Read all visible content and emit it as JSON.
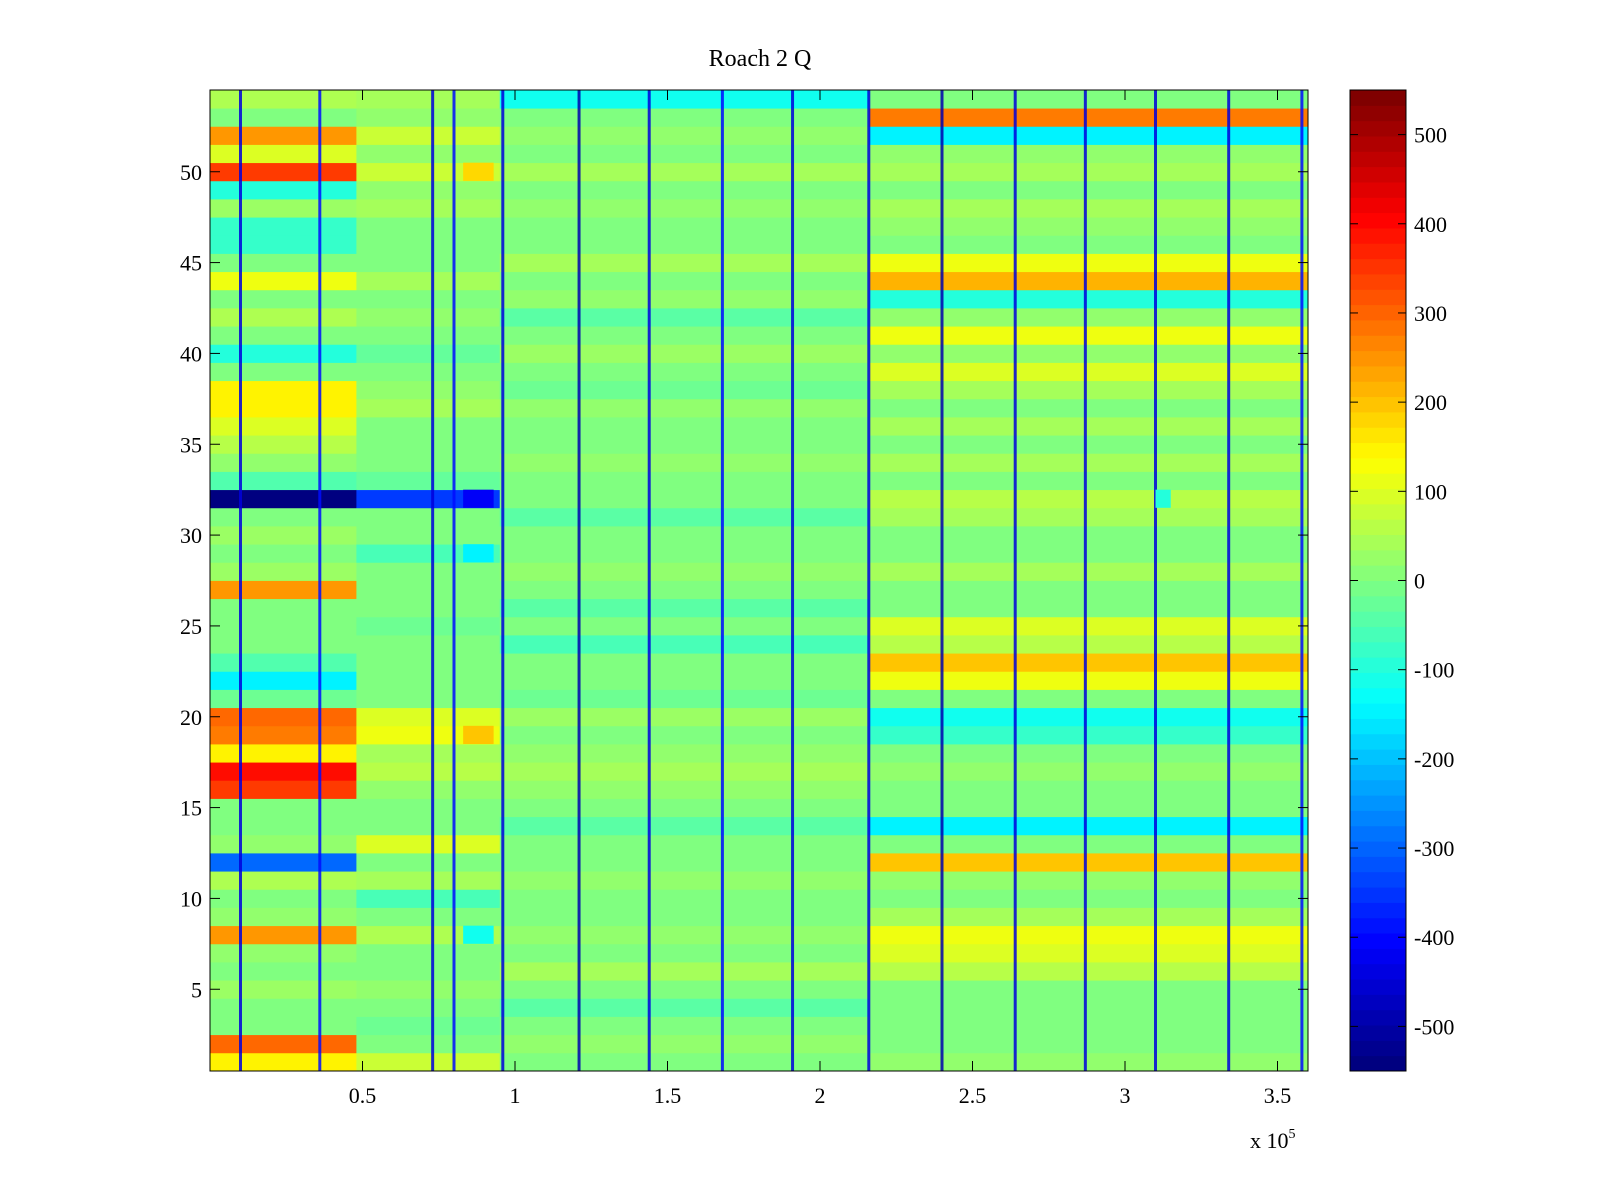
{
  "chart_data": {
    "type": "heatmap",
    "title": "Roach 2 Q",
    "xlabel": "",
    "ylabel": "",
    "xlim": [
      0,
      360000
    ],
    "ylim": [
      0.5,
      54.5
    ],
    "x_multiplier_label": "x 10",
    "x_multiplier_exponent": "5",
    "x_ticks": [
      0.5,
      1,
      1.5,
      2,
      2.5,
      3,
      3.5
    ],
    "x_tick_labels": [
      "0.5",
      "1",
      "1.5",
      "2",
      "2.5",
      "3",
      "3.5"
    ],
    "y_ticks": [
      5,
      10,
      15,
      20,
      25,
      30,
      35,
      40,
      45,
      50
    ],
    "y_tick_labels": [
      "5",
      "10",
      "15",
      "20",
      "25",
      "30",
      "35",
      "40",
      "45",
      "50"
    ],
    "rows": 54,
    "colormap": "jet",
    "clim": [
      -550,
      550
    ],
    "colorbar_ticks": [
      500,
      400,
      300,
      200,
      100,
      0,
      -100,
      -200,
      -300,
      -400,
      -500
    ],
    "colorbar_tick_labels": [
      "500",
      "400",
      "300",
      "200",
      "100",
      "0",
      "-100",
      "-200",
      "-300",
      "-400",
      "-500"
    ],
    "grid": false,
    "segments_x": [
      0,
      48000,
      95000,
      216000,
      360000
    ],
    "row_levels": {
      "segment_1": [
        150,
        300,
        0,
        0,
        30,
        0,
        20,
        250,
        20,
        0,
        50,
        -300,
        20,
        0,
        0,
        350,
        400,
        150,
        280,
        300,
        -20,
        -150,
        -50,
        0,
        0,
        0,
        250,
        30,
        0,
        30,
        0,
        -550,
        -50,
        20,
        60,
        100,
        150,
        150,
        0,
        -100,
        0,
        50,
        0,
        120,
        0,
        -80,
        -80,
        30,
        -100,
        350,
        100,
        250,
        0,
        50
      ],
      "segment_2": [
        80,
        0,
        -20,
        0,
        20,
        0,
        0,
        50,
        0,
        -60,
        40,
        0,
        100,
        0,
        0,
        20,
        60,
        40,
        120,
        100,
        0,
        0,
        0,
        0,
        -20,
        0,
        0,
        0,
        -60,
        0,
        0,
        -350,
        -30,
        0,
        0,
        0,
        40,
        20,
        0,
        -30,
        0,
        20,
        0,
        40,
        0,
        0,
        0,
        40,
        20,
        80,
        20,
        80,
        20,
        40
      ],
      "segment_3": [
        0,
        20,
        0,
        -40,
        0,
        40,
        0,
        20,
        0,
        0,
        20,
        0,
        0,
        -40,
        0,
        20,
        40,
        20,
        0,
        30,
        -20,
        0,
        0,
        -60,
        0,
        -40,
        0,
        20,
        0,
        0,
        -40,
        0,
        0,
        20,
        0,
        0,
        20,
        -20,
        0,
        30,
        0,
        -40,
        20,
        0,
        40,
        0,
        0,
        20,
        0,
        40,
        0,
        20,
        0,
        -120
      ],
      "segment_4": [
        20,
        0,
        0,
        0,
        0,
        60,
        100,
        120,
        40,
        0,
        20,
        200,
        0,
        -150,
        0,
        0,
        20,
        0,
        -80,
        -120,
        0,
        120,
        200,
        60,
        100,
        0,
        0,
        40,
        0,
        0,
        40,
        60,
        0,
        40,
        0,
        40,
        0,
        40,
        100,
        20,
        120,
        20,
        -100,
        220,
        120,
        0,
        20,
        40,
        0,
        40,
        20,
        -150,
        280,
        0
      ]
    },
    "stripes": [
      {
        "x": 10000,
        "value": -450
      },
      {
        "x": 36000,
        "value": -400
      },
      {
        "x": 73000,
        "value": -450
      },
      {
        "x": 80000,
        "value": -400
      },
      {
        "x": 96000,
        "value": -450
      },
      {
        "x": 121000,
        "value": -500
      },
      {
        "x": 144000,
        "value": -450
      },
      {
        "x": 168000,
        "value": -400
      },
      {
        "x": 191000,
        "value": -450
      },
      {
        "x": 216000,
        "value": -450
      },
      {
        "x": 240000,
        "value": -500
      },
      {
        "x": 264000,
        "value": -450
      },
      {
        "x": 287000,
        "value": -450
      },
      {
        "x": 310000,
        "value": -450
      },
      {
        "x": 334000,
        "value": -450
      },
      {
        "x": 358000,
        "value": -400
      }
    ],
    "blocks": [
      {
        "x0": 83000,
        "x1": 93000,
        "row": 32,
        "value": -420
      },
      {
        "x0": 83000,
        "x1": 93000,
        "row": 50,
        "value": 180
      },
      {
        "x0": 83000,
        "x1": 93000,
        "row": 19,
        "value": 200
      },
      {
        "x0": 83000,
        "x1": 93000,
        "row": 8,
        "value": -120
      },
      {
        "x0": 83000,
        "x1": 93000,
        "row": 29,
        "value": -150
      },
      {
        "x0": 310000,
        "x1": 315000,
        "row": 32,
        "value": -100
      }
    ]
  }
}
